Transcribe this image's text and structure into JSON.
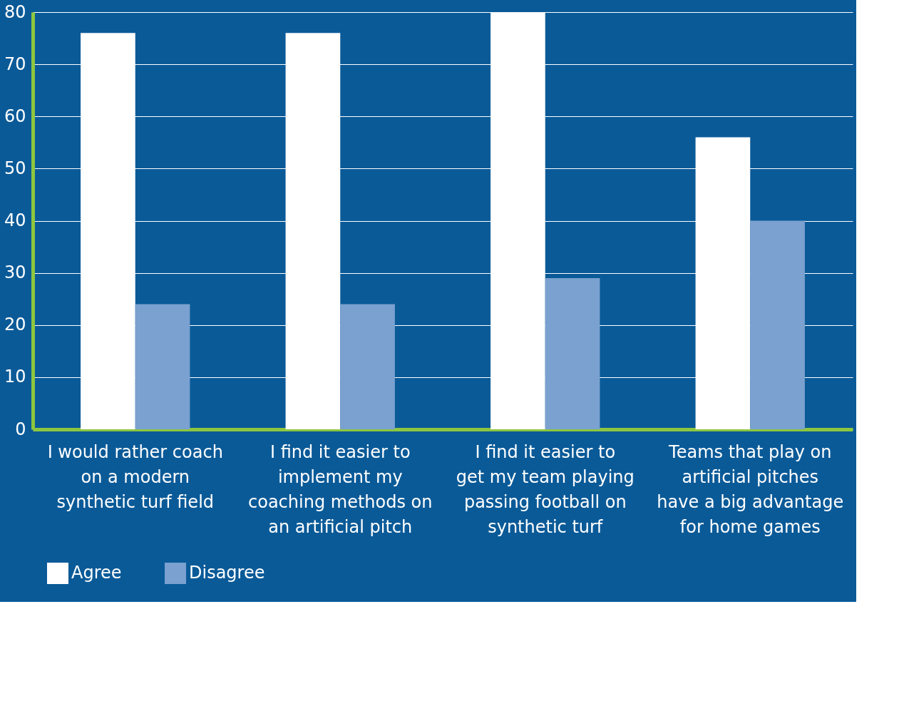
{
  "chart_data": {
    "type": "bar",
    "categories": [
      "I would rather coach on a modern synthetic turf field",
      "I find it easier to implement my coaching methods on an artificial pitch",
      "I find it easier to get my team playing passing football on synthetic turf",
      "Teams that play on artificial pitches have a big advantage for home games"
    ],
    "series": [
      {
        "name": "Agree",
        "color": "#ffffff",
        "values": [
          76,
          76,
          80,
          56
        ]
      },
      {
        "name": "Disagree",
        "color": "#7aa1cf",
        "values": [
          24,
          24,
          29,
          40
        ]
      }
    ],
    "ylim": [
      0,
      80
    ],
    "yticks": [
      0,
      10,
      20,
      30,
      40,
      50,
      60,
      70,
      80
    ],
    "grid": "y",
    "legend": "bottom"
  }
}
